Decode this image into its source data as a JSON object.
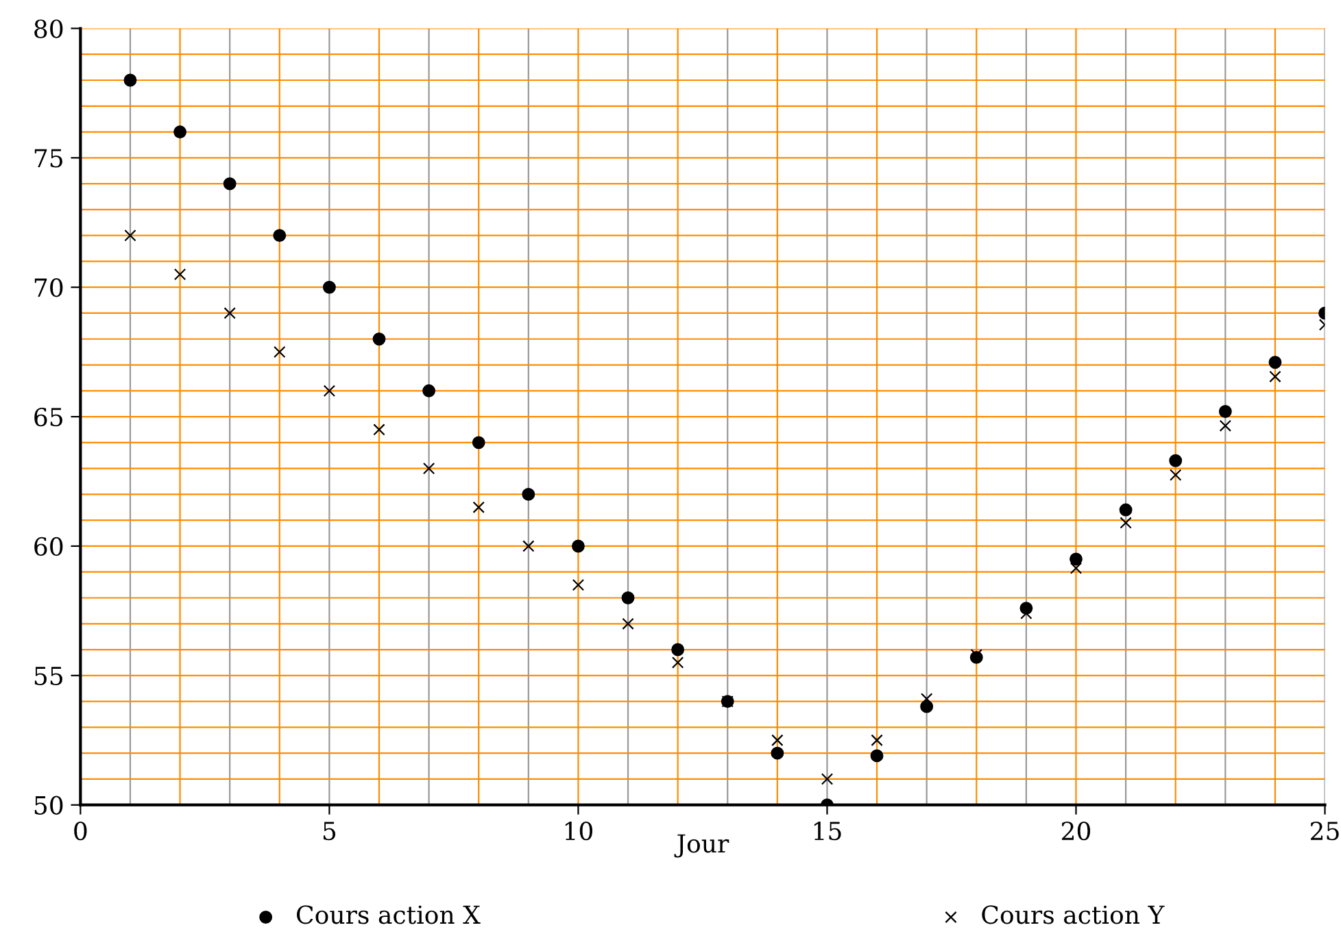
{
  "chart_data": {
    "type": "scatter",
    "xlabel": "Jour",
    "x": [
      1,
      2,
      3,
      4,
      5,
      6,
      7,
      8,
      9,
      10,
      11,
      12,
      13,
      14,
      15,
      16,
      17,
      18,
      19,
      20,
      21,
      22,
      23,
      24,
      25
    ],
    "series": [
      {
        "name": "Cours action X",
        "color": "#000000",
        "marker": "circle",
        "values": [
          78,
          76,
          74,
          72,
          70,
          68,
          66,
          64,
          62,
          60,
          58,
          56,
          54,
          52,
          50,
          51.9,
          53.8,
          55.7,
          57.6,
          59.5,
          61.4,
          63.3,
          65.2,
          67.1,
          69.0
        ]
      },
      {
        "name": "Cours action Y",
        "color": "#000000",
        "marker": "cross",
        "values": [
          72,
          70.5,
          69,
          67.5,
          66,
          64.5,
          63,
          61.5,
          60,
          58.5,
          57,
          55.5,
          54,
          52.5,
          51,
          52.5,
          54.1,
          55.8,
          57.4,
          59.15,
          60.9,
          62.75,
          64.65,
          66.55,
          68.55
        ]
      }
    ],
    "xlim": [
      0,
      25
    ],
    "ylim": [
      50,
      80
    ],
    "xticks": [
      0,
      5,
      10,
      15,
      20,
      25
    ],
    "yticks": [
      50,
      55,
      60,
      65,
      70,
      75,
      80
    ],
    "grid": true,
    "legend": "bottom"
  }
}
